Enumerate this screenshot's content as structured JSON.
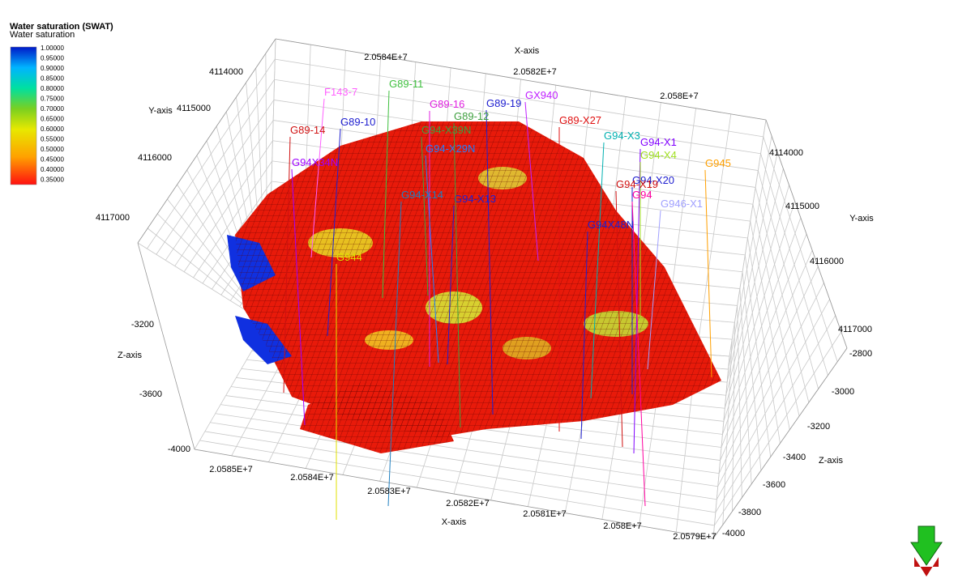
{
  "legend": {
    "title": "Water saturation (SWAT)",
    "subtitle": "Water saturation",
    "ticks": [
      "1.00000",
      "0.95000",
      "0.90000",
      "0.85000",
      "0.80000",
      "0.75000",
      "0.70000",
      "0.65000",
      "0.60000",
      "0.55000",
      "0.50000",
      "0.45000",
      "0.40000",
      "0.35000"
    ]
  },
  "axes": {
    "x_title_top": "X-axis",
    "x_title_bottom": "X-axis",
    "y_title_left": "Y-axis",
    "y_title_right": "Y-axis",
    "z_title_left": "Z-axis",
    "z_title_right": "Z-axis",
    "x_ticks_top": [
      "2.0584E+7",
      "2.0582E+7",
      "2.058E+7"
    ],
    "x_ticks_bottom": [
      "2.0585E+7",
      "2.0584E+7",
      "2.0583E+7",
      "2.0582E+7",
      "2.0581E+7",
      "2.058E+7",
      "2.0579E+7"
    ],
    "y_ticks_left": [
      "4114000",
      "4115000",
      "4116000",
      "4117000"
    ],
    "y_ticks_right": [
      "4114000",
      "4115000",
      "4116000",
      "4117000"
    ],
    "z_ticks_left": [
      "-3200",
      "-3600",
      "-4000"
    ],
    "z_ticks_right": [
      "-2800",
      "-3000",
      "-3200",
      "-3400",
      "-3600",
      "-3800",
      "-4000"
    ]
  },
  "wells": [
    "F143-7",
    "G89-11",
    "G89-16",
    "G89-19",
    "GX940",
    "G89-10",
    "G89-14",
    "G89-X27",
    "G94-X39N",
    "G94-X29N",
    "G94-X3",
    "G94-X1",
    "G94-X4",
    "G945",
    "G94X34N",
    "G94-X14",
    "G94-X13",
    "G94-X20",
    "G94-X19",
    "G94",
    "G946-X1",
    "G94X48N",
    "G944",
    "G89-12"
  ]
}
